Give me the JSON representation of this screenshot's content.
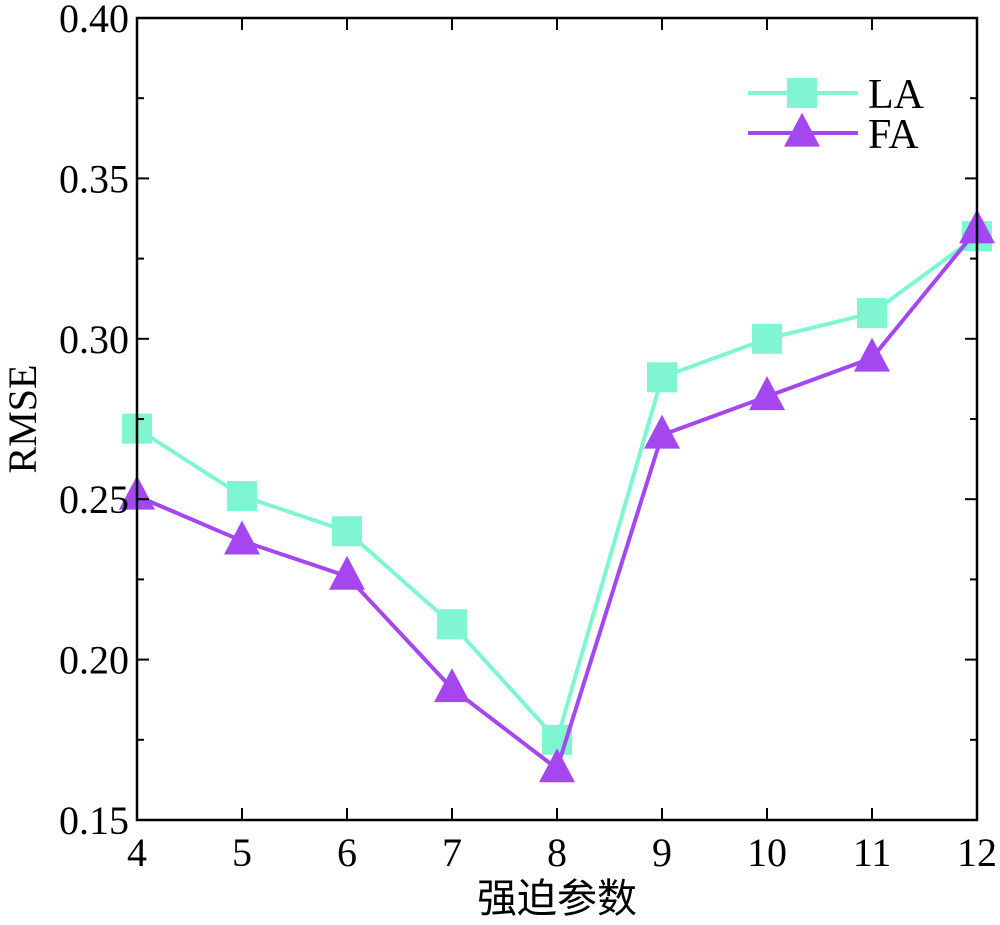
{
  "chart_data": {
    "type": "line",
    "title": "",
    "xlabel": "强迫参数",
    "ylabel": "RMSE",
    "x": [
      4,
      5,
      6,
      7,
      8,
      9,
      10,
      11,
      12
    ],
    "xlim": [
      4,
      12
    ],
    "ylim": [
      0.15,
      0.4
    ],
    "xticks": [
      "4",
      "5",
      "6",
      "7",
      "8",
      "9",
      "10",
      "11",
      "12"
    ],
    "yticks": [
      "0.15",
      "0.20",
      "0.25",
      "0.30",
      "0.35",
      "0.40"
    ],
    "grid": false,
    "legend_position": "top-right",
    "series": [
      {
        "name": "LA",
        "marker": "square",
        "color": "#7ff5d2",
        "values": [
          0.272,
          0.251,
          0.24,
          0.211,
          0.175,
          0.288,
          0.3,
          0.308,
          0.332
        ]
      },
      {
        "name": "FA",
        "marker": "triangle",
        "color": "#a447f0",
        "values": [
          0.251,
          0.237,
          0.226,
          0.191,
          0.166,
          0.27,
          0.282,
          0.294,
          0.334
        ]
      }
    ]
  }
}
